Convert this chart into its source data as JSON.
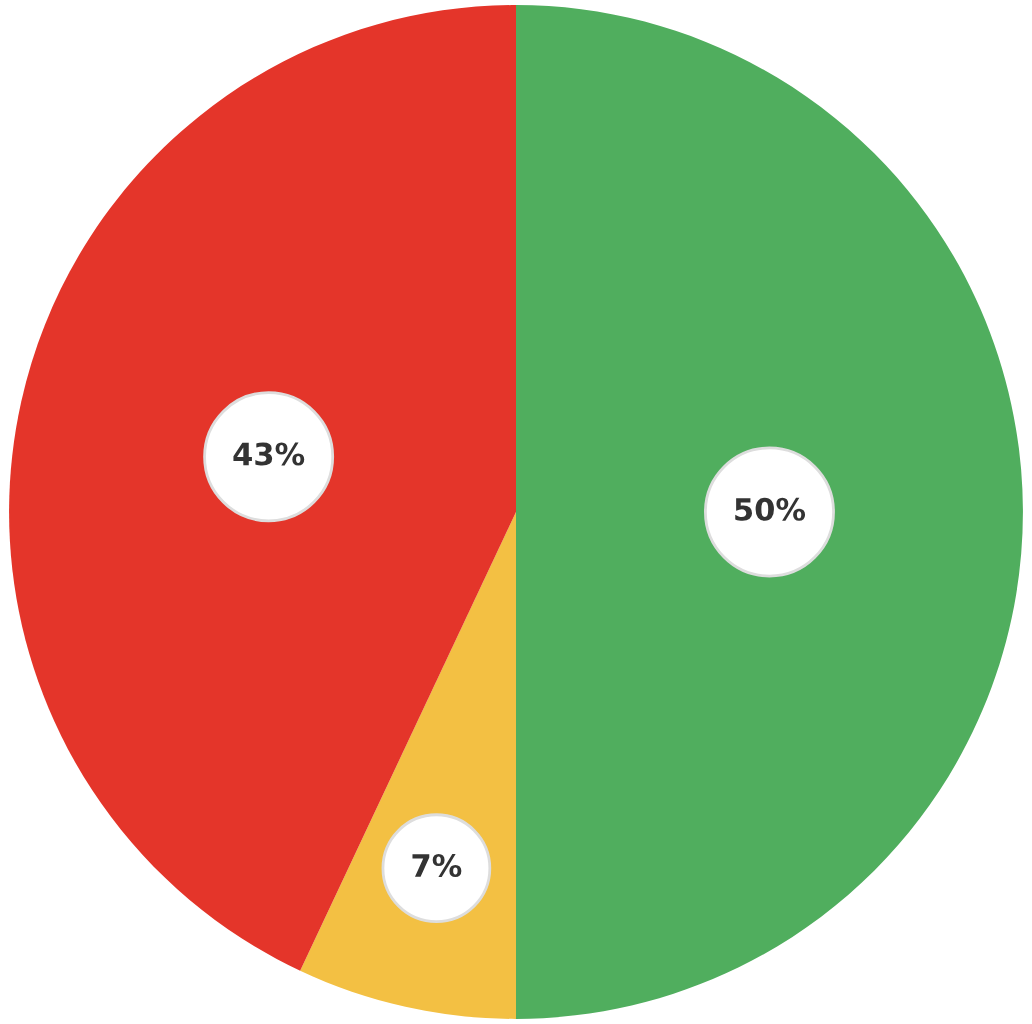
{
  "chart_data": {
    "type": "pie",
    "categories": [
      null,
      null,
      null
    ],
    "values": [
      50,
      7,
      43
    ],
    "colors": [
      "#50ae5e",
      "#f3c043",
      "#e4352a"
    ],
    "value_labels": [
      "50%",
      "7%",
      "43%"
    ]
  }
}
